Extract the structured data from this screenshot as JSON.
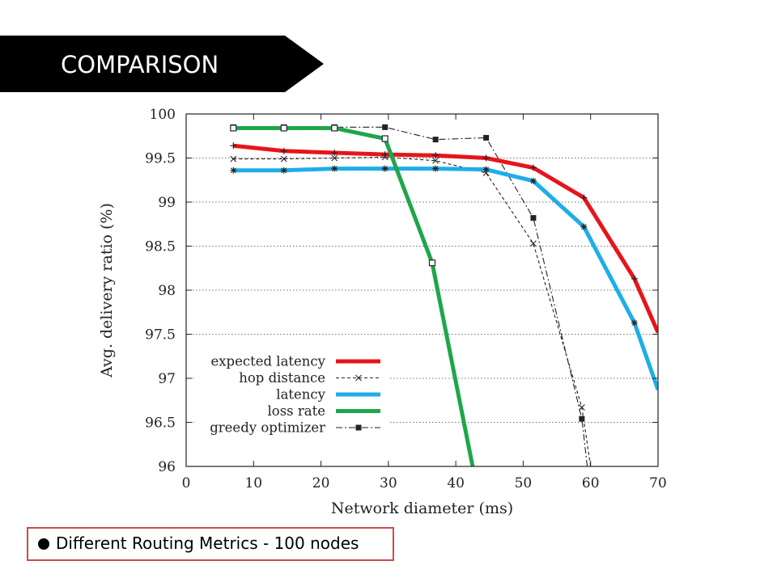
{
  "slide": {
    "title": "COMPARISON",
    "caption": "Different Routing Metrics - 100 nodes",
    "banner_color": "#000000",
    "caption_border_color": "#c0504d"
  },
  "chart_data": {
    "type": "line",
    "xlabel": "Network diameter (ms)",
    "ylabel": "Avg. delivery ratio (%)",
    "xlim": [
      0,
      70
    ],
    "ylim": [
      96,
      100
    ],
    "xticks": [
      0,
      10,
      20,
      30,
      40,
      50,
      60,
      70
    ],
    "yticks": [
      96,
      96.5,
      97,
      97.5,
      98,
      98.5,
      99,
      99.5,
      100
    ],
    "grid": "horizontal dotted",
    "legend": "bottom-left",
    "series": [
      {
        "name": "expected latency",
        "color": "#e8141b",
        "style": "thick",
        "marker": "plus",
        "points": [
          [
            7,
            99.64
          ],
          [
            14.5,
            99.58
          ],
          [
            22,
            99.56
          ],
          [
            29.5,
            99.54
          ],
          [
            37,
            99.53
          ],
          [
            44.5,
            99.5
          ],
          [
            51.5,
            99.39
          ],
          [
            59,
            99.05
          ],
          [
            66.5,
            98.13
          ],
          [
            70,
            97.52
          ]
        ]
      },
      {
        "name": "hop distance",
        "color": "#222222",
        "style": "dashed",
        "marker": "x",
        "points": [
          [
            7,
            99.49
          ],
          [
            14.5,
            99.49
          ],
          [
            22,
            99.5
          ],
          [
            29.5,
            99.51
          ],
          [
            37,
            99.47
          ],
          [
            44.5,
            99.33
          ],
          [
            51.5,
            98.53
          ],
          [
            58.7,
            96.67
          ],
          [
            60,
            96.0
          ]
        ]
      },
      {
        "name": "latency",
        "color": "#1daee8",
        "style": "thick",
        "marker": "asterisk",
        "points": [
          [
            7,
            99.36
          ],
          [
            14.5,
            99.36
          ],
          [
            22,
            99.38
          ],
          [
            29.5,
            99.38
          ],
          [
            37,
            99.38
          ],
          [
            44.5,
            99.37
          ],
          [
            51.5,
            99.24
          ],
          [
            59,
            98.72
          ],
          [
            66.5,
            97.63
          ],
          [
            70,
            96.87
          ]
        ]
      },
      {
        "name": "loss rate",
        "color": "#1fa64a",
        "style": "thick",
        "marker": "square-open",
        "points": [
          [
            7,
            99.84
          ],
          [
            14.5,
            99.84
          ],
          [
            22,
            99.84
          ],
          [
            29.5,
            99.72
          ],
          [
            36.5,
            98.31
          ],
          [
            42.5,
            96.0
          ]
        ]
      },
      {
        "name": "greedy optimizer",
        "color": "#222222",
        "style": "dashdot",
        "marker": "square-filled",
        "points": [
          [
            7,
            99.85
          ],
          [
            14.5,
            99.85
          ],
          [
            22,
            99.85
          ],
          [
            29.5,
            99.85
          ],
          [
            37,
            99.71
          ],
          [
            44.5,
            99.73
          ],
          [
            51.5,
            98.82
          ],
          [
            58.7,
            96.54
          ],
          [
            59.5,
            96.0
          ]
        ]
      }
    ]
  }
}
